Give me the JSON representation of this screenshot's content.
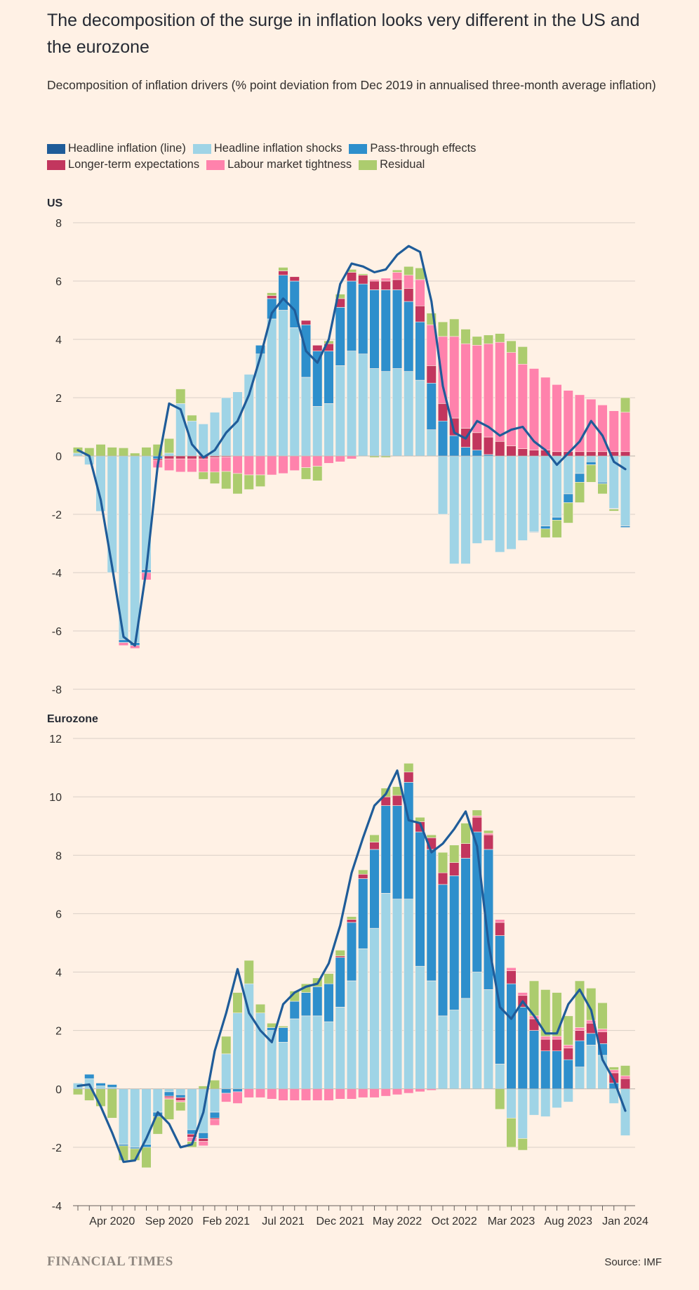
{
  "title": "The decomposition of the surge in inflation looks very different in the US and the eurozone",
  "subtitle": "Decomposition of inflation drivers (% point deviation from Dec 2019 in annualised three-month average inflation)",
  "legend": [
    {
      "label": "Headline inflation (line)",
      "color": "#1F5C99"
    },
    {
      "label": "Headline inflation shocks",
      "color": "#9FD4E6"
    },
    {
      "label": "Pass-through effects",
      "color": "#2E8FCC"
    },
    {
      "label": "Longer-term expectations",
      "color": "#C2365E"
    },
    {
      "label": "Labour market tightness",
      "color": "#FF82AC"
    },
    {
      "label": "Residual",
      "color": "#ACCC6E"
    }
  ],
  "footer": {
    "brand": "FINANCIAL TIMES",
    "source": "Source: IMF"
  },
  "chart_data": [
    {
      "type": "bar",
      "panel": "US",
      "stacked": true,
      "ylim": [
        -8,
        8
      ],
      "yticks": [
        8,
        6,
        4,
        2,
        0,
        -2,
        -4,
        -6,
        -8
      ],
      "xticks": [
        {
          "index": 3,
          "label": "Apr 2020"
        },
        {
          "index": 8,
          "label": "Sep 2020"
        },
        {
          "index": 13,
          "label": "Feb 2021"
        },
        {
          "index": 18,
          "label": "Jul 2021"
        },
        {
          "index": 23,
          "label": "Dec 2021"
        },
        {
          "index": 28,
          "label": "May 2022"
        },
        {
          "index": 33,
          "label": "Oct 2022"
        },
        {
          "index": 38,
          "label": "Mar 2023"
        },
        {
          "index": 43,
          "label": "Aug 2023"
        },
        {
          "index": 48,
          "label": "Jan 2024"
        }
      ],
      "series": [
        {
          "name": "Headline inflation shocks",
          "color": "#9FD4E6",
          "values": [
            0.1,
            -0.3,
            -1.9,
            -4.0,
            -6.3,
            -6.4,
            -3.9,
            0.0,
            0.1,
            1.8,
            1.2,
            1.1,
            1.5,
            2.0,
            2.2,
            2.8,
            3.5,
            4.7,
            5.0,
            4.4,
            2.7,
            1.7,
            1.8,
            3.1,
            3.6,
            3.5,
            3.0,
            2.9,
            3.0,
            2.9,
            2.6,
            0.9,
            -2.0,
            -3.7,
            -3.7,
            -3.0,
            -2.9,
            -3.3,
            -3.2,
            -2.9,
            -2.6,
            -2.4,
            -2.1,
            -1.3,
            -0.6,
            -0.2,
            -0.9,
            -1.8,
            -2.4
          ]
        },
        {
          "name": "Pass-through effects",
          "color": "#2E8FCC",
          "values": [
            0,
            0,
            0,
            0,
            -0.1,
            -0.1,
            -0.1,
            -0.1,
            0,
            0,
            0,
            0,
            0,
            0,
            0,
            0,
            0.3,
            0.7,
            1.2,
            1.6,
            1.8,
            1.9,
            1.8,
            2.0,
            2.4,
            2.4,
            2.7,
            2.8,
            2.7,
            2.4,
            2.0,
            1.6,
            1.2,
            0.7,
            0.3,
            0.2,
            0.05,
            0,
            0,
            0,
            -0.02,
            -0.1,
            -0.1,
            -0.3,
            -0.3,
            -0.1,
            -0.05,
            -0.02,
            -0.05
          ]
        },
        {
          "name": "Longer-term expectations",
          "color": "#C2365E",
          "values": [
            0,
            0,
            0,
            0,
            0,
            0,
            0,
            -0.05,
            -0.1,
            -0.1,
            -0.1,
            -0.1,
            -0.05,
            -0.03,
            0,
            0,
            0,
            0.1,
            0.15,
            0.15,
            0.15,
            0.2,
            0.25,
            0.3,
            0.3,
            0.3,
            0.3,
            0.3,
            0.35,
            0.45,
            0.55,
            0.6,
            0.6,
            0.6,
            0.65,
            0.6,
            0.6,
            0.5,
            0.35,
            0.25,
            0.2,
            0.2,
            0.15,
            0.15,
            0.15,
            0.15,
            0.15,
            0.15,
            0.15
          ]
        },
        {
          "name": "Labour market tightness",
          "color": "#FF82AC",
          "values": [
            0,
            0,
            0,
            0,
            -0.1,
            -0.1,
            -0.25,
            -0.25,
            -0.4,
            -0.45,
            -0.45,
            -0.45,
            -0.5,
            -0.5,
            -0.6,
            -0.65,
            -0.65,
            -0.65,
            -0.6,
            -0.5,
            -0.4,
            -0.35,
            -0.25,
            -0.2,
            -0.1,
            0,
            0.05,
            0.1,
            0.25,
            0.45,
            0.9,
            1.4,
            2.3,
            2.8,
            2.9,
            3.0,
            3.2,
            3.4,
            3.2,
            2.9,
            2.8,
            2.5,
            2.3,
            2.1,
            1.95,
            1.8,
            1.6,
            1.4,
            1.35
          ]
        },
        {
          "name": "Residual",
          "color": "#ACCC6E",
          "values": [
            0.2,
            0.28,
            0.4,
            0.3,
            0.28,
            0.1,
            0.3,
            0.4,
            0.5,
            0.5,
            0.2,
            -0.25,
            -0.4,
            -0.6,
            -0.7,
            -0.5,
            -0.4,
            0.1,
            0.12,
            0,
            -0.4,
            -0.5,
            0.1,
            0.15,
            0.1,
            0.05,
            -0.05,
            -0.05,
            0.08,
            0.3,
            0.4,
            0.4,
            0.5,
            0.6,
            0.5,
            0.3,
            0.3,
            0.3,
            0.4,
            0.6,
            0.0,
            -0.3,
            -0.6,
            -0.7,
            -0.7,
            -0.6,
            -0.35,
            -0.07,
            0.5
          ]
        }
      ],
      "line": {
        "name": "Headline inflation (line)",
        "color": "#1F5C99",
        "values": [
          0.2,
          0.0,
          -1.5,
          -3.8,
          -6.2,
          -6.5,
          -3.9,
          -0.3,
          1.8,
          1.6,
          0.4,
          -0.05,
          0.2,
          0.8,
          1.2,
          2.1,
          3.4,
          4.9,
          5.4,
          5.0,
          3.6,
          3.2,
          4.0,
          5.9,
          6.6,
          6.5,
          6.3,
          6.4,
          6.9,
          7.2,
          7.0,
          5.3,
          2.4,
          0.8,
          0.6,
          1.2,
          1.0,
          0.7,
          0.9,
          1.0,
          0.5,
          0.2,
          -0.3,
          0.1,
          0.5,
          1.2,
          0.7,
          -0.2,
          -0.45
        ]
      }
    },
    {
      "type": "bar",
      "panel": "Eurozone",
      "stacked": true,
      "ylim": [
        -4,
        12
      ],
      "yticks": [
        12,
        10,
        8,
        6,
        4,
        2,
        0,
        -2,
        -4
      ],
      "xticks": [
        {
          "index": 3,
          "label": "Apr 2020"
        },
        {
          "index": 8,
          "label": "Sep 2020"
        },
        {
          "index": 13,
          "label": "Feb 2021"
        },
        {
          "index": 18,
          "label": "Jul 2021"
        },
        {
          "index": 23,
          "label": "Dec 2021"
        },
        {
          "index": 28,
          "label": "May 2022"
        },
        {
          "index": 33,
          "label": "Oct 2022"
        },
        {
          "index": 38,
          "label": "Mar 2023"
        },
        {
          "index": 43,
          "label": "Aug 2023"
        },
        {
          "index": 48,
          "label": "Jan 2024"
        }
      ],
      "series": [
        {
          "name": "Headline inflation shocks",
          "color": "#9FD4E6",
          "values": [
            0.2,
            0.35,
            0.1,
            0.05,
            -1.9,
            -2.0,
            -1.9,
            -0.8,
            -0.1,
            -0.2,
            -1.4,
            -1.5,
            -0.8,
            1.2,
            2.6,
            3.6,
            2.6,
            2.0,
            1.6,
            2.4,
            2.5,
            2.5,
            2.3,
            2.8,
            3.7,
            4.8,
            5.5,
            6.7,
            6.5,
            6.5,
            4.2,
            3.7,
            2.5,
            2.7,
            3.1,
            4.0,
            3.4,
            0.85,
            -1.0,
            -1.7,
            -0.9,
            -0.95,
            -0.65,
            -0.45,
            0.75,
            1.5,
            1.15,
            -0.5,
            -1.6
          ]
        },
        {
          "name": "Pass-through effects",
          "color": "#2E8FCC",
          "values": [
            0,
            0.15,
            0.1,
            0.1,
            -0.05,
            -0.05,
            -0.1,
            -0.15,
            -0.15,
            -0.1,
            -0.15,
            -0.2,
            -0.2,
            -0.15,
            -0.1,
            0,
            0,
            0.1,
            0.5,
            0.6,
            0.8,
            1.0,
            1.3,
            1.7,
            2.0,
            2.4,
            2.7,
            3.0,
            3.2,
            4.0,
            4.6,
            4.5,
            4.5,
            4.6,
            4.8,
            4.8,
            4.8,
            4.4,
            3.6,
            2.8,
            2.0,
            1.3,
            1.3,
            1.0,
            0.9,
            0.4,
            0.4,
            0.2,
            0.0
          ]
        },
        {
          "name": "Longer-term expectations",
          "color": "#C2365E",
          "values": [
            0,
            0,
            0,
            0,
            0,
            0,
            0,
            0,
            -0.05,
            -0.1,
            -0.1,
            -0.1,
            -0.05,
            0,
            0,
            0,
            0,
            0,
            0,
            0,
            0,
            0,
            0,
            0.05,
            0.1,
            0.15,
            0.25,
            0.3,
            0.35,
            0.35,
            0.35,
            0.4,
            0.4,
            0.45,
            0.5,
            0.5,
            0.5,
            0.45,
            0.45,
            0.4,
            0.4,
            0.4,
            0.4,
            0.4,
            0.35,
            0.35,
            0.4,
            0.35,
            0.35
          ]
        },
        {
          "name": "Labour market tightness",
          "color": "#FF82AC",
          "values": [
            0,
            0,
            0,
            0,
            0,
            0,
            0,
            0,
            -0.05,
            -0.05,
            -0.15,
            -0.15,
            -0.2,
            -0.3,
            -0.4,
            -0.3,
            -0.3,
            -0.35,
            -0.4,
            -0.4,
            -0.4,
            -0.4,
            -0.4,
            -0.35,
            -0.35,
            -0.3,
            -0.3,
            -0.25,
            -0.2,
            -0.15,
            -0.1,
            -0.05,
            0,
            0,
            0,
            0.05,
            0.05,
            0.1,
            0.1,
            0.1,
            0.1,
            0.1,
            0.1,
            0.1,
            0.1,
            0.1,
            0.1,
            0.1,
            0.1
          ]
        },
        {
          "name": "Residual",
          "color": "#ACCC6E",
          "values": [
            -0.2,
            -0.4,
            -0.6,
            -1.0,
            -0.5,
            -0.4,
            -0.7,
            -0.6,
            -0.7,
            -0.3,
            -0.2,
            0.1,
            0.3,
            0.6,
            0.7,
            0.8,
            0.3,
            0.15,
            0.05,
            0.35,
            0.3,
            0.3,
            0.35,
            0.2,
            0.1,
            0.15,
            0.25,
            0.3,
            0.3,
            0.3,
            0.15,
            0.1,
            0.7,
            0.6,
            0.7,
            0.2,
            0.1,
            -0.7,
            -1.0,
            -0.4,
            1.2,
            1.6,
            1.5,
            1.0,
            1.6,
            1.1,
            0.9,
            0.1,
            0.35
          ]
        }
      ],
      "line": {
        "name": "Headline inflation (line)",
        "color": "#1F5C99",
        "values": [
          0.1,
          0.15,
          -0.6,
          -1.5,
          -2.5,
          -2.45,
          -1.7,
          -0.8,
          -1.2,
          -2.0,
          -1.9,
          -0.8,
          1.3,
          2.6,
          4.1,
          2.6,
          2.0,
          1.6,
          2.9,
          3.3,
          3.5,
          3.6,
          4.3,
          5.6,
          7.4,
          8.6,
          9.7,
          10.1,
          10.9,
          9.2,
          9.1,
          8.1,
          8.4,
          8.9,
          9.5,
          8.3,
          5.0,
          2.8,
          2.4,
          3.0,
          2.5,
          1.9,
          1.9,
          2.9,
          3.4,
          2.7,
          1.0,
          0.3,
          -0.75
        ]
      }
    }
  ]
}
